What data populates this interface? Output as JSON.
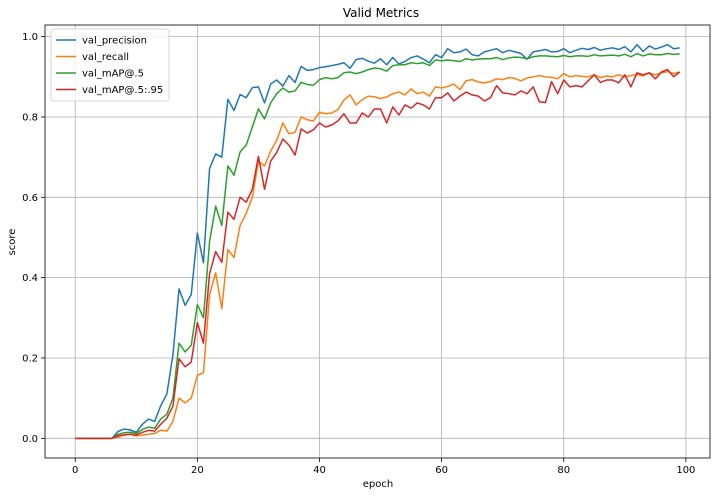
{
  "chart_data": {
    "type": "line",
    "title": "Valid Metrics",
    "xlabel": "epoch",
    "ylabel": "score",
    "xlim": [
      -4.95,
      103.95
    ],
    "ylim": [
      -0.049,
      1.029
    ],
    "xticks": [
      0,
      20,
      40,
      60,
      80,
      100
    ],
    "yticks": [
      0.0,
      0.2,
      0.4,
      0.6,
      0.8,
      1.0
    ],
    "xtick_labels": [
      "0",
      "20",
      "40",
      "60",
      "80",
      "100"
    ],
    "ytick_labels": [
      "0.0",
      "0.2",
      "0.4",
      "0.6",
      "0.8",
      "1.0"
    ],
    "grid": true,
    "legend_position": "upper-left",
    "series": [
      {
        "name": "val_precision",
        "color": "#1f77b4",
        "values": [
          0,
          0,
          0,
          0,
          0,
          0,
          0,
          0.017,
          0.023,
          0.021,
          0.015,
          0.035,
          0.048,
          0.042,
          0.081,
          0.11,
          0.208,
          0.372,
          0.331,
          0.358,
          0.511,
          0.437,
          0.672,
          0.708,
          0.7,
          0.844,
          0.816,
          0.856,
          0.848,
          0.873,
          0.875,
          0.835,
          0.882,
          0.892,
          0.877,
          0.903,
          0.886,
          0.926,
          0.916,
          0.918,
          0.923,
          0.925,
          0.928,
          0.931,
          0.935,
          0.921,
          0.943,
          0.946,
          0.939,
          0.934,
          0.945,
          0.93,
          0.948,
          0.932,
          0.938,
          0.948,
          0.952,
          0.944,
          0.935,
          0.955,
          0.948,
          0.97,
          0.96,
          0.962,
          0.969,
          0.955,
          0.952,
          0.962,
          0.966,
          0.97,
          0.96,
          0.966,
          0.962,
          0.958,
          0.944,
          0.962,
          0.965,
          0.968,
          0.962,
          0.963,
          0.97,
          0.96,
          0.966,
          0.971,
          0.968,
          0.973,
          0.966,
          0.97,
          0.972,
          0.968,
          0.975,
          0.962,
          0.98,
          0.963,
          0.977,
          0.969,
          0.974,
          0.98,
          0.97,
          0.972
        ]
      },
      {
        "name": "val_recall",
        "color": "#ff7f0e",
        "values": [
          0,
          0,
          0,
          0,
          0,
          0,
          0,
          0.003,
          0.008,
          0.01,
          0.006,
          0.008,
          0.01,
          0.012,
          0.02,
          0.018,
          0.042,
          0.1,
          0.088,
          0.1,
          0.157,
          0.163,
          0.358,
          0.412,
          0.323,
          0.47,
          0.45,
          0.53,
          0.56,
          0.6,
          0.69,
          0.678,
          0.715,
          0.742,
          0.785,
          0.758,
          0.762,
          0.8,
          0.793,
          0.79,
          0.812,
          0.808,
          0.81,
          0.818,
          0.842,
          0.855,
          0.83,
          0.843,
          0.852,
          0.85,
          0.846,
          0.85,
          0.858,
          0.862,
          0.855,
          0.87,
          0.858,
          0.862,
          0.852,
          0.875,
          0.872,
          0.876,
          0.882,
          0.868,
          0.89,
          0.893,
          0.887,
          0.885,
          0.888,
          0.895,
          0.893,
          0.898,
          0.896,
          0.89,
          0.897,
          0.9,
          0.903,
          0.9,
          0.899,
          0.895,
          0.908,
          0.9,
          0.903,
          0.901,
          0.9,
          0.905,
          0.898,
          0.902,
          0.9,
          0.905,
          0.9,
          0.903,
          0.906,
          0.902,
          0.91,
          0.905,
          0.91,
          0.913,
          0.908,
          0.912
        ]
      },
      {
        "name": "val_mAP@.5",
        "color": "#2ca02c",
        "values": [
          0,
          0,
          0,
          0,
          0,
          0,
          0,
          0.01,
          0.014,
          0.015,
          0.012,
          0.022,
          0.028,
          0.025,
          0.048,
          0.06,
          0.1,
          0.237,
          0.215,
          0.232,
          0.333,
          0.3,
          0.49,
          0.578,
          0.53,
          0.678,
          0.655,
          0.713,
          0.73,
          0.775,
          0.82,
          0.795,
          0.835,
          0.858,
          0.872,
          0.862,
          0.865,
          0.886,
          0.881,
          0.879,
          0.893,
          0.898,
          0.895,
          0.898,
          0.91,
          0.912,
          0.908,
          0.912,
          0.918,
          0.922,
          0.92,
          0.914,
          0.928,
          0.93,
          0.93,
          0.935,
          0.933,
          0.935,
          0.928,
          0.942,
          0.94,
          0.942,
          0.94,
          0.938,
          0.945,
          0.942,
          0.944,
          0.945,
          0.945,
          0.948,
          0.943,
          0.947,
          0.949,
          0.948,
          0.945,
          0.95,
          0.952,
          0.952,
          0.951,
          0.95,
          0.953,
          0.95,
          0.952,
          0.952,
          0.951,
          0.955,
          0.952,
          0.953,
          0.954,
          0.952,
          0.956,
          0.95,
          0.958,
          0.952,
          0.957,
          0.955,
          0.955,
          0.958,
          0.956,
          0.957
        ]
      },
      {
        "name": "val_mAP@.5:.95",
        "color": "#d62728",
        "values": [
          0,
          0,
          0,
          0,
          0,
          0,
          0,
          0.006,
          0.009,
          0.01,
          0.008,
          0.015,
          0.02,
          0.018,
          0.035,
          0.05,
          0.08,
          0.198,
          0.178,
          0.19,
          0.288,
          0.237,
          0.41,
          0.465,
          0.438,
          0.563,
          0.545,
          0.6,
          0.588,
          0.62,
          0.702,
          0.62,
          0.69,
          0.712,
          0.745,
          0.73,
          0.705,
          0.77,
          0.76,
          0.768,
          0.785,
          0.775,
          0.78,
          0.79,
          0.808,
          0.785,
          0.785,
          0.81,
          0.8,
          0.82,
          0.82,
          0.785,
          0.825,
          0.805,
          0.83,
          0.822,
          0.835,
          0.83,
          0.82,
          0.848,
          0.848,
          0.86,
          0.84,
          0.852,
          0.862,
          0.855,
          0.852,
          0.84,
          0.848,
          0.878,
          0.86,
          0.858,
          0.855,
          0.865,
          0.858,
          0.875,
          0.838,
          0.836,
          0.888,
          0.858,
          0.892,
          0.875,
          0.878,
          0.875,
          0.89,
          0.905,
          0.886,
          0.892,
          0.892,
          0.885,
          0.905,
          0.875,
          0.91,
          0.905,
          0.91,
          0.895,
          0.912,
          0.918,
          0.9,
          0.912
        ]
      }
    ]
  }
}
